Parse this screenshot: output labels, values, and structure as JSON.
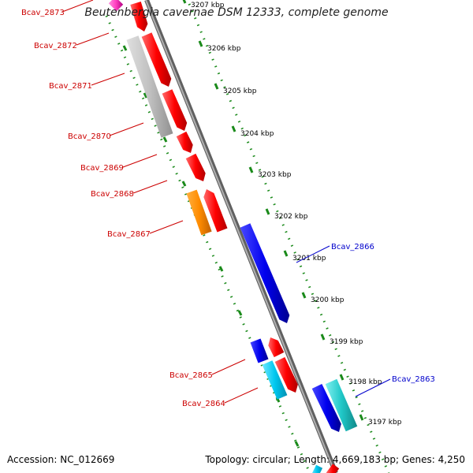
{
  "title": "Beutenbergia cavernae DSM 12333, complete genome",
  "footer": {
    "accession": "Accession: NC_012669",
    "summary": "Topology: circular; Length: 4,669,183 bp; Genes: 4,250"
  },
  "colors": {
    "backbone": "#8a8a8a",
    "ruler_dots": "#1a8a1a",
    "red": "#ff0000",
    "grey": "#c0c0c0",
    "orange": "#ff8c00",
    "blue": "#0000ee",
    "cyan": "#00c8f0",
    "teal": "#20c8c8",
    "magenta": "#ff40c0",
    "label_red": "#cc0000",
    "label_blue": "#0000cc"
  },
  "ticks": [
    "3207 kbp",
    "3206 kbp",
    "3205 kbp",
    "3204 kbp",
    "3203 kbp",
    "3202 kbp",
    "3201 kbp",
    "3200 kbp",
    "3199 kbp",
    "3198 kbp",
    "3197 kbp"
  ],
  "genes": [
    {
      "label": "Bcav_2873",
      "color": "label_red"
    },
    {
      "label": "Bcav_2872",
      "color": "label_red"
    },
    {
      "label": "Bcav_2871",
      "color": "label_red"
    },
    {
      "label": "Bcav_2870",
      "color": "label_red"
    },
    {
      "label": "Bcav_2869",
      "color": "label_red"
    },
    {
      "label": "Bcav_2868",
      "color": "label_red"
    },
    {
      "label": "Bcav_2867",
      "color": "label_red"
    },
    {
      "label": "Bcav_2866",
      "color": "label_blue"
    },
    {
      "label": "Bcav_2865",
      "color": "label_red"
    },
    {
      "label": "Bcav_2864",
      "color": "label_red"
    },
    {
      "label": "Bcav_2863",
      "color": "label_blue"
    }
  ]
}
